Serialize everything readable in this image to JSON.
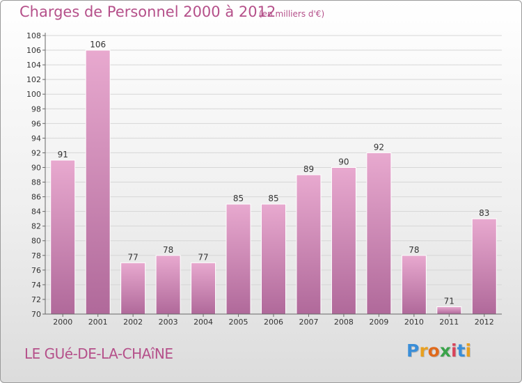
{
  "header": {
    "title": "Charges de Personnel 2000 à 2012",
    "subtitle": "(en milliers d'€)"
  },
  "footer": {
    "commune": "LE GUé-DE-LA-CHAîNE",
    "logo_letters": [
      "P",
      "r",
      "o",
      "x",
      "i",
      "t",
      "i"
    ],
    "logo_colors": [
      "#3a8ed8",
      "#e8a020",
      "#e06a1c",
      "#3aa34a",
      "#d8445a",
      "#3a8ed8",
      "#e8a020"
    ]
  },
  "colors": {
    "bar_top": "#e8a9cf",
    "bar_bottom": "#b0699a",
    "text": "#b5508a",
    "axis": "#666666",
    "grid": "#d6d6d6"
  },
  "chart_data": {
    "type": "bar",
    "title": "Charges de Personnel 2000 à 2012",
    "subtitle": "(en milliers d'€)",
    "xlabel": "",
    "ylabel": "",
    "categories": [
      "2000",
      "2001",
      "2002",
      "2003",
      "2004",
      "2005",
      "2006",
      "2007",
      "2008",
      "2009",
      "2010",
      "2011",
      "2012"
    ],
    "values": [
      91,
      106,
      77,
      78,
      77,
      85,
      85,
      89,
      90,
      92,
      78,
      71,
      83
    ],
    "ylim": [
      70,
      108
    ],
    "yticks": [
      70,
      72,
      74,
      76,
      78,
      80,
      82,
      84,
      86,
      88,
      90,
      92,
      94,
      96,
      98,
      100,
      102,
      104,
      106,
      108
    ],
    "grid": true
  }
}
